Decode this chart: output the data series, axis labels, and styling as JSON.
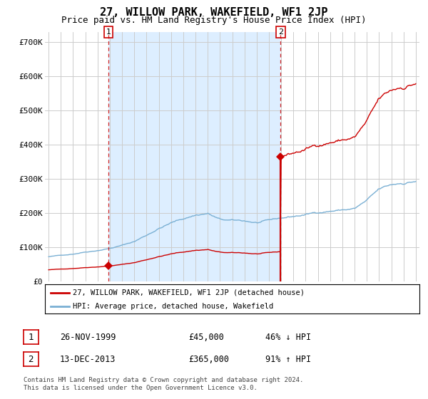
{
  "title": "27, WILLOW PARK, WAKEFIELD, WF1 2JP",
  "subtitle": "Price paid vs. HM Land Registry's House Price Index (HPI)",
  "title_fontsize": 11,
  "subtitle_fontsize": 9,
  "ylabel_ticks": [
    "£0",
    "£100K",
    "£200K",
    "£300K",
    "£400K",
    "£500K",
    "£600K",
    "£700K"
  ],
  "ytick_values": [
    0,
    100000,
    200000,
    300000,
    400000,
    500000,
    600000,
    700000
  ],
  "ylim": [
    0,
    730000
  ],
  "xlim_start": 1994.7,
  "xlim_end": 2025.3,
  "sale1_x": 1999.9,
  "sale1_y": 45000,
  "sale2_x": 2013.95,
  "sale2_y": 365000,
  "red_color": "#cc0000",
  "blue_color": "#7ab0d4",
  "shade_color": "#ddeeff",
  "grid_color": "#cccccc",
  "legend_label_red": "27, WILLOW PARK, WAKEFIELD, WF1 2JP (detached house)",
  "legend_label_blue": "HPI: Average price, detached house, Wakefield",
  "table_row1": [
    "1",
    "26-NOV-1999",
    "£45,000",
    "46% ↓ HPI"
  ],
  "table_row2": [
    "2",
    "13-DEC-2013",
    "£365,000",
    "91% ↑ HPI"
  ],
  "footer": "Contains HM Land Registry data © Crown copyright and database right 2024.\nThis data is licensed under the Open Government Licence v3.0."
}
